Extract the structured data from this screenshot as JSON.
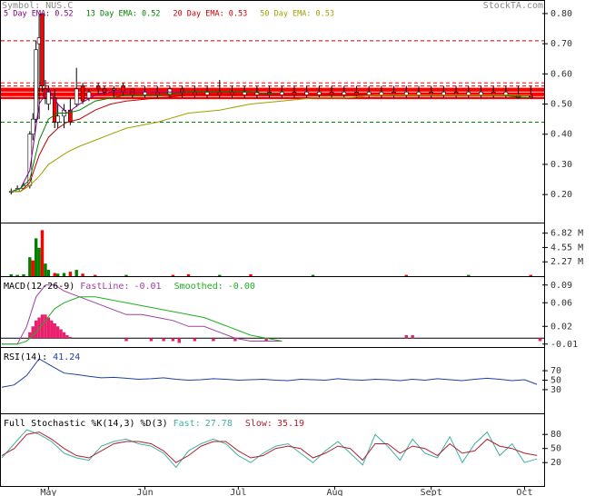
{
  "header": {
    "symbol": "Symbol: NUS.C",
    "site": "StockTA.com"
  },
  "chart_data": [
    {
      "type": "candlestick",
      "xlim": [
        0,
        174
      ],
      "ylim": [
        0.107,
        0.845
      ],
      "yticks": [
        {
          "value": 0.2,
          "label": "0.20"
        },
        {
          "value": 0.3,
          "label": "0.30"
        },
        {
          "value": 0.4,
          "label": "0.40"
        },
        {
          "value": 0.5,
          "label": "0.50"
        },
        {
          "value": 0.6,
          "label": "0.60"
        },
        {
          "value": 0.7,
          "label": "0.70"
        },
        {
          "value": 0.8,
          "label": "0.80"
        }
      ],
      "candles": {
        "x": [
          3,
          5,
          7,
          9,
          10,
          11,
          12,
          13,
          14,
          15,
          17,
          18,
          20,
          22,
          24,
          26,
          28,
          31,
          33,
          36,
          39,
          42,
          46,
          50,
          54,
          58,
          62,
          66,
          70,
          74,
          78,
          82,
          86,
          90,
          94,
          98,
          102,
          106,
          110,
          114,
          118,
          122,
          126,
          130,
          134,
          138,
          142,
          146,
          150,
          154,
          158,
          162,
          166,
          170
        ],
        "open": [
          0.21,
          0.21,
          0.22,
          0.23,
          0.4,
          0.45,
          0.7,
          0.8,
          0.55,
          0.5,
          0.52,
          0.44,
          0.46,
          0.48,
          0.5,
          0.56,
          0.52,
          0.56,
          0.55,
          0.55,
          0.56,
          0.55,
          0.53,
          0.54,
          0.53,
          0.55,
          0.54,
          0.53,
          0.54,
          0.54,
          0.53,
          0.53,
          0.54,
          0.53,
          0.54,
          0.53,
          0.53,
          0.54,
          0.53,
          0.54,
          0.53,
          0.53,
          0.54,
          0.53,
          0.53,
          0.54,
          0.53,
          0.54,
          0.53,
          0.53,
          0.54,
          0.53,
          0.53,
          0.53
        ],
        "high": [
          0.22,
          0.23,
          0.24,
          0.41,
          0.47,
          0.71,
          0.8,
          0.8,
          0.58,
          0.56,
          0.55,
          0.5,
          0.5,
          0.52,
          0.62,
          0.57,
          0.55,
          0.57,
          0.56,
          0.56,
          0.57,
          0.55,
          0.56,
          0.56,
          0.56,
          0.56,
          0.56,
          0.56,
          0.58,
          0.56,
          0.56,
          0.56,
          0.56,
          0.56,
          0.56,
          0.56,
          0.56,
          0.56,
          0.56,
          0.56,
          0.56,
          0.56,
          0.56,
          0.56,
          0.56,
          0.56,
          0.56,
          0.56,
          0.56,
          0.56,
          0.56,
          0.56,
          0.56,
          0.56
        ],
        "low": [
          0.2,
          0.21,
          0.22,
          0.22,
          0.38,
          0.44,
          0.45,
          0.54,
          0.5,
          0.48,
          0.42,
          0.42,
          0.42,
          0.43,
          0.49,
          0.5,
          0.51,
          0.53,
          0.53,
          0.52,
          0.53,
          0.52,
          0.52,
          0.52,
          0.52,
          0.52,
          0.52,
          0.52,
          0.52,
          0.52,
          0.52,
          0.52,
          0.52,
          0.52,
          0.52,
          0.52,
          0.52,
          0.52,
          0.52,
          0.52,
          0.52,
          0.52,
          0.52,
          0.52,
          0.52,
          0.52,
          0.52,
          0.52,
          0.52,
          0.52,
          0.52,
          0.52,
          0.52,
          0.52
        ],
        "close": [
          0.21,
          0.22,
          0.23,
          0.4,
          0.45,
          0.68,
          0.72,
          0.56,
          0.52,
          0.54,
          0.44,
          0.46,
          0.48,
          0.44,
          0.55,
          0.51,
          0.54,
          0.55,
          0.54,
          0.55,
          0.54,
          0.53,
          0.54,
          0.53,
          0.55,
          0.54,
          0.53,
          0.54,
          0.53,
          0.53,
          0.54,
          0.54,
          0.53,
          0.54,
          0.53,
          0.54,
          0.54,
          0.53,
          0.54,
          0.53,
          0.54,
          0.54,
          0.53,
          0.54,
          0.54,
          0.53,
          0.54,
          0.53,
          0.54,
          0.54,
          0.53,
          0.54,
          0.52,
          0.52
        ],
        "up_color": "#ffffff",
        "down_color": "#ff0000"
      },
      "levels": [
        {
          "value": 0.71,
          "color": "#c00000",
          "dashed": true
        },
        {
          "value": 0.57,
          "color": "#ff0000",
          "dashed": true
        },
        {
          "value": 0.56,
          "color": "#ff0000",
          "dashed": true
        },
        {
          "value": 0.55,
          "color": "#ff0000",
          "dashed": false
        },
        {
          "value": 0.545,
          "color": "#ff0000",
          "dashed": false
        },
        {
          "value": 0.535,
          "color": "#ff0000",
          "dashed": false
        },
        {
          "value": 0.53,
          "color": "#ff0000",
          "dashed": false
        },
        {
          "value": 0.52,
          "color": "#ff0000",
          "dashed": false
        },
        {
          "value": 0.44,
          "color": "#008000",
          "dashed": true
        }
      ],
      "line_x": [
        3,
        6,
        9,
        12,
        15,
        18,
        21,
        25,
        30,
        35,
        40,
        50,
        60,
        70,
        80,
        90,
        100,
        110,
        120,
        130,
        140,
        150,
        160,
        170
      ],
      "series": [
        {
          "name": "5 Day EMA:",
          "latest": 0.52,
          "color": "#800080",
          "values": [
            0.21,
            0.22,
            0.28,
            0.5,
            0.55,
            0.5,
            0.47,
            0.5,
            0.53,
            0.54,
            0.54,
            0.54,
            0.54,
            0.54,
            0.54,
            0.53,
            0.53,
            0.53,
            0.53,
            0.53,
            0.53,
            0.53,
            0.53,
            0.52
          ]
        },
        {
          "name": "13 Day EMA:",
          "latest": 0.52,
          "color": "#008000",
          "values": [
            0.21,
            0.22,
            0.25,
            0.38,
            0.45,
            0.47,
            0.47,
            0.48,
            0.51,
            0.52,
            0.53,
            0.53,
            0.54,
            0.54,
            0.54,
            0.53,
            0.53,
            0.53,
            0.53,
            0.53,
            0.53,
            0.53,
            0.53,
            0.52
          ]
        },
        {
          "name": "20 Day EMA:",
          "latest": 0.53,
          "color": "#c00000",
          "values": [
            0.21,
            0.21,
            0.24,
            0.33,
            0.39,
            0.42,
            0.44,
            0.45,
            0.48,
            0.5,
            0.51,
            0.52,
            0.53,
            0.53,
            0.53,
            0.53,
            0.53,
            0.53,
            0.53,
            0.53,
            0.53,
            0.53,
            0.53,
            0.53
          ]
        },
        {
          "name": "50 Day EMA:",
          "latest": 0.53,
          "color": "#a0a000",
          "values": [
            0.21,
            0.21,
            0.23,
            0.26,
            0.3,
            0.32,
            0.34,
            0.36,
            0.38,
            0.4,
            0.42,
            0.44,
            0.47,
            0.48,
            0.5,
            0.51,
            0.52,
            0.52,
            0.53,
            0.53,
            0.53,
            0.53,
            0.53,
            0.53
          ]
        }
      ]
    },
    {
      "type": "volume",
      "xlim": [
        0,
        174
      ],
      "ylim": [
        0,
        8.5
      ],
      "yticks": [
        {
          "value": 2.27,
          "label": "2.27 M"
        },
        {
          "value": 4.55,
          "label": "4.55 M"
        },
        {
          "value": 6.82,
          "label": "6.82 M"
        }
      ],
      "bars": {
        "x": [
          3,
          5,
          7,
          9,
          10,
          11,
          12,
          13,
          14,
          15,
          17,
          18,
          20,
          22,
          24,
          26,
          30,
          40,
          55,
          60,
          70,
          80,
          100,
          130,
          150,
          170
        ],
        "values": [
          0.3,
          0.2,
          0.3,
          3.0,
          2.5,
          6.0,
          4.5,
          7.3,
          2.0,
          1.0,
          0.5,
          0.4,
          0.5,
          0.7,
          1.0,
          0.4,
          0.2,
          0.2,
          0.2,
          0.3,
          0.2,
          0.3,
          0.2,
          0.2,
          0.2,
          0.2
        ],
        "colors": [
          "#008000",
          "#008000",
          "#008000",
          "#008000",
          "#ff0000",
          "#008000",
          "#008000",
          "#ff0000",
          "#008000",
          "#008000",
          "#ff0000",
          "#008000",
          "#008000",
          "#ff0000",
          "#008000",
          "#ff0000",
          "#ff0000",
          "#008000",
          "#ff0000",
          "#ff0000",
          "#008000",
          "#ff0000",
          "#008000",
          "#ff0000",
          "#008000",
          "#ff0000"
        ]
      }
    },
    {
      "type": "macd",
      "title": "MACD(12-26-9)",
      "xlim": [
        0,
        174
      ],
      "ylim": [
        -0.015,
        0.105
      ],
      "zero_line": true,
      "yticks": [
        -0.01,
        0.02,
        0.06,
        0.09
      ],
      "line_x": [
        0,
        5,
        8,
        11,
        14,
        17,
        20,
        25,
        30,
        35,
        40,
        45,
        50,
        55,
        60,
        65,
        70,
        75,
        80,
        85,
        90
      ],
      "series": [
        {
          "name": "FastLine:",
          "latest": -0.01,
          "latest_label": "-0.01",
          "color": "#a040a0",
          "values": [
            -0.01,
            -0.01,
            0.02,
            0.07,
            0.09,
            0.09,
            0.08,
            0.07,
            0.06,
            0.05,
            0.04,
            0.04,
            0.035,
            0.03,
            0.02,
            0.02,
            0.01,
            0.0,
            -0.005,
            -0.005,
            -0.005
          ]
        },
        {
          "name": "Smoothed:",
          "latest": 0,
          "latest_label": "-0.00",
          "color": "#20b020",
          "values": [
            -0.01,
            -0.01,
            -0.005,
            0.01,
            0.03,
            0.05,
            0.06,
            0.07,
            0.07,
            0.065,
            0.06,
            0.055,
            0.05,
            0.045,
            0.04,
            0.035,
            0.025,
            0.015,
            0.005,
            0.0,
            -0.005
          ]
        }
      ],
      "bars": {
        "x": [
          9,
          10,
          11,
          12,
          13,
          14,
          15,
          16,
          17,
          18,
          19,
          20,
          21,
          22,
          40,
          48,
          52,
          55,
          57,
          62,
          68,
          75,
          85,
          130,
          132,
          173
        ],
        "values": [
          0.01,
          0.02,
          0.03,
          0.035,
          0.04,
          0.04,
          0.035,
          0.03,
          0.025,
          0.02,
          0.015,
          0.01,
          0.005,
          0.002,
          -0.005,
          -0.005,
          -0.005,
          -0.005,
          -0.008,
          -0.005,
          -0.005,
          -0.005,
          -0.005,
          0.005,
          0.005,
          -0.005
        ],
        "color": "#e8206e"
      }
    },
    {
      "type": "rsi",
      "title": "RSI(14):",
      "xlim": [
        0,
        174
      ],
      "ylim": [
        -20,
        120
      ],
      "yticks": [
        30,
        50,
        70
      ],
      "line_x": [
        0,
        4,
        8,
        12,
        16,
        20,
        24,
        28,
        32,
        36,
        40,
        44,
        48,
        52,
        56,
        60,
        64,
        68,
        72,
        76,
        80,
        84,
        88,
        92,
        96,
        100,
        104,
        108,
        112,
        116,
        120,
        124,
        128,
        132,
        136,
        140,
        144,
        148,
        152,
        156,
        160,
        164,
        168,
        172
      ],
      "series": [
        {
          "latest": 41.24,
          "color": "#2040a0",
          "values": [
            35,
            40,
            60,
            95,
            80,
            65,
            62,
            58,
            55,
            56,
            54,
            52,
            53,
            55,
            52,
            50,
            51,
            53,
            52,
            50,
            51,
            52,
            50,
            49,
            52,
            51,
            50,
            53,
            51,
            50,
            52,
            51,
            49,
            52,
            50,
            53,
            51,
            49,
            52,
            54,
            52,
            49,
            51,
            41.24
          ]
        }
      ]
    },
    {
      "type": "stochastic",
      "title": "Full Stochastic %K(14,3) %D(3)",
      "xlim": [
        0,
        174
      ],
      "ylim": [
        -30,
        125
      ],
      "yticks": [
        20,
        50,
        80
      ],
      "xticks": [
        {
          "value": 15,
          "label": "May"
        },
        {
          "value": 46,
          "label": "Jun"
        },
        {
          "value": 76,
          "label": "Jul"
        },
        {
          "value": 107,
          "label": "Aug"
        },
        {
          "value": 138,
          "label": "Sept"
        },
        {
          "value": 168,
          "label": "Oct"
        }
      ],
      "line_x": [
        0,
        4,
        8,
        12,
        16,
        20,
        24,
        28,
        32,
        36,
        40,
        44,
        48,
        52,
        56,
        60,
        64,
        68,
        72,
        76,
        80,
        84,
        88,
        92,
        96,
        100,
        104,
        108,
        112,
        116,
        120,
        124,
        128,
        132,
        136,
        140,
        144,
        148,
        152,
        156,
        160,
        164,
        168,
        172
      ],
      "series": [
        {
          "name": "Fast:",
          "latest": 27.78,
          "color": "#40b0a0",
          "values": [
            30,
            60,
            90,
            80,
            65,
            40,
            30,
            25,
            55,
            65,
            70,
            60,
            55,
            40,
            10,
            45,
            60,
            70,
            60,
            35,
            20,
            40,
            55,
            60,
            40,
            20,
            45,
            65,
            40,
            15,
            80,
            55,
            25,
            70,
            40,
            30,
            75,
            20,
            60,
            85,
            35,
            60,
            20,
            27.78
          ]
        },
        {
          "name": "Slow:",
          "latest": 35.19,
          "color": "#b02030",
          "values": [
            35,
            50,
            80,
            85,
            70,
            50,
            35,
            30,
            45,
            60,
            65,
            65,
            60,
            45,
            20,
            35,
            55,
            65,
            65,
            45,
            30,
            35,
            50,
            55,
            50,
            30,
            40,
            55,
            50,
            25,
            60,
            60,
            40,
            55,
            50,
            35,
            60,
            40,
            45,
            70,
            55,
            50,
            40,
            35.19
          ]
        }
      ]
    }
  ]
}
